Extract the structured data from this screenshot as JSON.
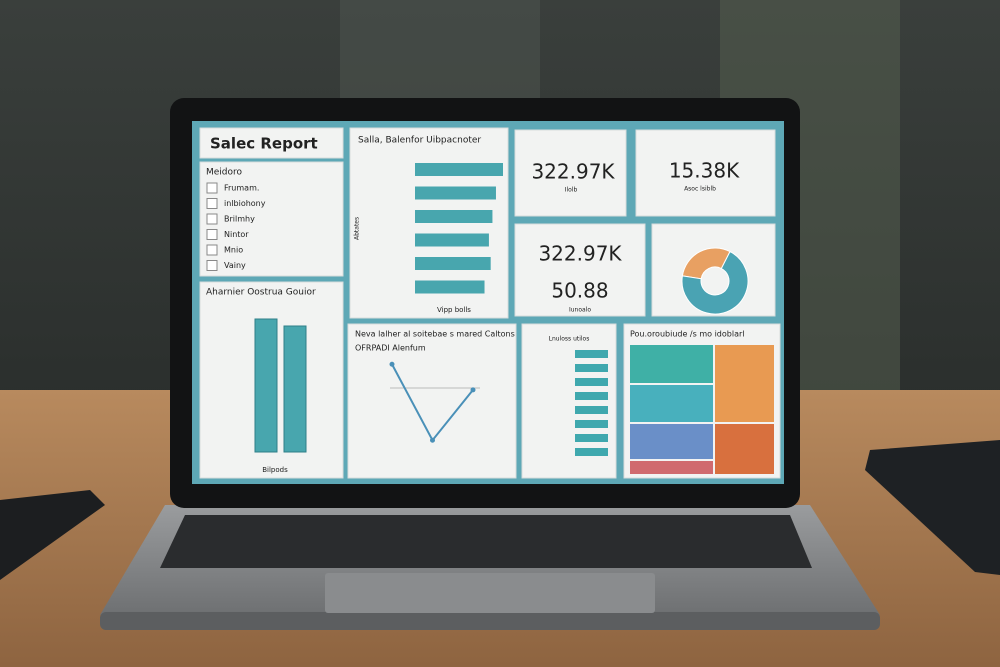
{
  "header": {
    "title": "Salec Report"
  },
  "filter": {
    "title": "Meidoro",
    "items": [
      "Frumam.",
      "inlbiohony",
      "Brilmhy",
      "Nintor",
      "Mnio",
      "Vainy"
    ]
  },
  "hbar": {
    "title": "Salla, Balenfor Uibpacnoter",
    "x_label": "Vipp bolls",
    "y_label": "Abtates",
    "values": [
      100,
      92,
      88,
      84,
      86,
      79
    ],
    "xlim": [
      0,
      100
    ],
    "color": "#48a6ae"
  },
  "kpis": [
    {
      "value": "322.97K",
      "label": "Ilolb"
    },
    {
      "value": "15.38K",
      "label": "Asoc lsiblb"
    },
    {
      "value": "322.97K"
    },
    {
      "value": "50.88",
      "label": "Iunoalo"
    }
  ],
  "vbar": {
    "title": "Aharnier Oostrua Gouior",
    "x_label": "Bilpods",
    "values": [
      95,
      90
    ],
    "ylim": [
      0,
      100
    ],
    "color": "#48a6ae"
  },
  "line": {
    "title": "Neva lalher al soitebae s mared Caltons",
    "subtitle": "OFRPADI Alenfum",
    "values": [
      85,
      5,
      58
    ],
    "ylim": [
      0,
      100
    ],
    "color": "#4a90b8"
  },
  "pie": {
    "values": [
      30,
      70
    ],
    "colors": [
      "#e8a062",
      "#4aa3b3"
    ]
  },
  "table": {
    "title": "Lnuloss utilos"
  },
  "treemap": {
    "title": "Pou.oroubiude /s mo idoblarl"
  }
}
